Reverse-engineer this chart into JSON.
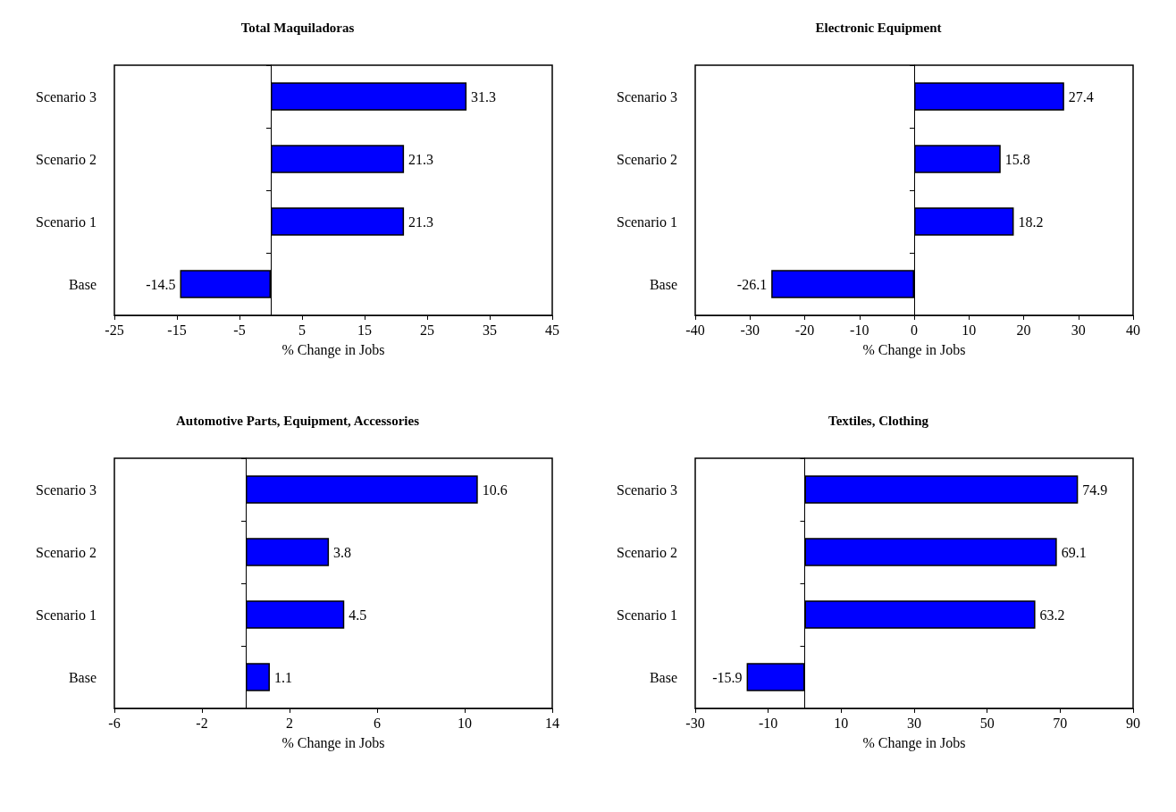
{
  "chart_data": [
    {
      "type": "bar",
      "orientation": "horizontal",
      "title": "Total Maquiladoras",
      "xlabel": "% Change in Jobs",
      "categories": [
        "Scenario 3",
        "Scenario 2",
        "Scenario 1",
        "Base"
      ],
      "values": [
        31.3,
        21.3,
        21.3,
        -14.5
      ],
      "color": "#0000ff",
      "xlim": [
        -25,
        45
      ],
      "xticks": [
        -25,
        -15,
        -5,
        5,
        15,
        25,
        35,
        45
      ],
      "data_labels": true
    },
    {
      "type": "bar",
      "orientation": "horizontal",
      "title": "Electronic Equipment",
      "xlabel": "% Change in Jobs",
      "categories": [
        "Scenario 3",
        "Scenario 2",
        "Scenario 1",
        "Base"
      ],
      "values": [
        27.4,
        15.8,
        18.2,
        -26.1
      ],
      "color": "#0000ff",
      "xlim": [
        -40,
        40
      ],
      "xticks": [
        -40,
        -30,
        -20,
        -10,
        0,
        10,
        20,
        30,
        40
      ],
      "data_labels": true
    },
    {
      "type": "bar",
      "orientation": "horizontal",
      "title": "Automotive Parts, Equipment, Accessories",
      "xlabel": "% Change in Jobs",
      "categories": [
        "Scenario 3",
        "Scenario 2",
        "Scenario 1",
        "Base"
      ],
      "values": [
        10.6,
        3.8,
        4.5,
        1.1
      ],
      "color": "#0000ff",
      "xlim": [
        -6,
        14
      ],
      "xticks": [
        -6,
        -2,
        2,
        6,
        10,
        14
      ],
      "data_labels": true
    },
    {
      "type": "bar",
      "orientation": "horizontal",
      "title": "Textiles, Clothing",
      "xlabel": "% Change in Jobs",
      "categories": [
        "Scenario 3",
        "Scenario 2",
        "Scenario 1",
        "Base"
      ],
      "values": [
        74.9,
        69.1,
        63.2,
        -15.9
      ],
      "color": "#0000ff",
      "xlim": [
        -30,
        90
      ],
      "xticks": [
        -30,
        -10,
        10,
        30,
        50,
        70,
        90
      ],
      "data_labels": true
    }
  ]
}
